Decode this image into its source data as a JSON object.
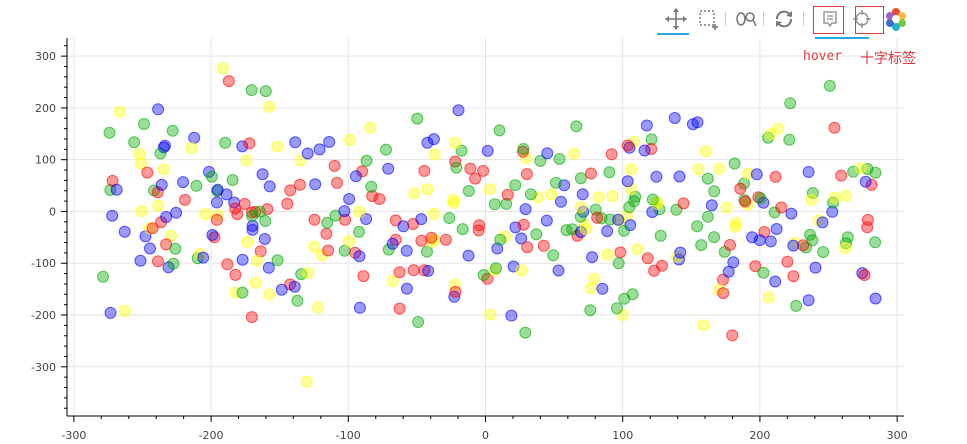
{
  "toolbar": {
    "tools": [
      "pan",
      "box-zoom",
      "wheel-zoom",
      "reset",
      "hover",
      "crosshair"
    ],
    "accent": "#26aae1"
  },
  "annotations": {
    "hover_label": "hover",
    "crosshair_label": "十字标签",
    "color": "#e03a3a"
  },
  "chart_data": {
    "type": "scatter",
    "title": "",
    "xlabel": "",
    "ylabel": "",
    "xlim": [
      -305,
      305
    ],
    "ylim": [
      -395,
      335
    ],
    "x_ticks": [
      -300,
      -200,
      -100,
      0,
      100,
      200,
      300
    ],
    "y_ticks": [
      -300,
      -200,
      -100,
      0,
      100,
      200,
      300
    ],
    "grid": true,
    "marker": "circle",
    "alpha": 0.4,
    "colors": [
      "#ff0000",
      "#00aa00",
      "#0000ff",
      "#ffff00"
    ],
    "point_count": 400,
    "distribution": "x roughly uniform in -280..285, y centred near 0 with spread about 100"
  }
}
